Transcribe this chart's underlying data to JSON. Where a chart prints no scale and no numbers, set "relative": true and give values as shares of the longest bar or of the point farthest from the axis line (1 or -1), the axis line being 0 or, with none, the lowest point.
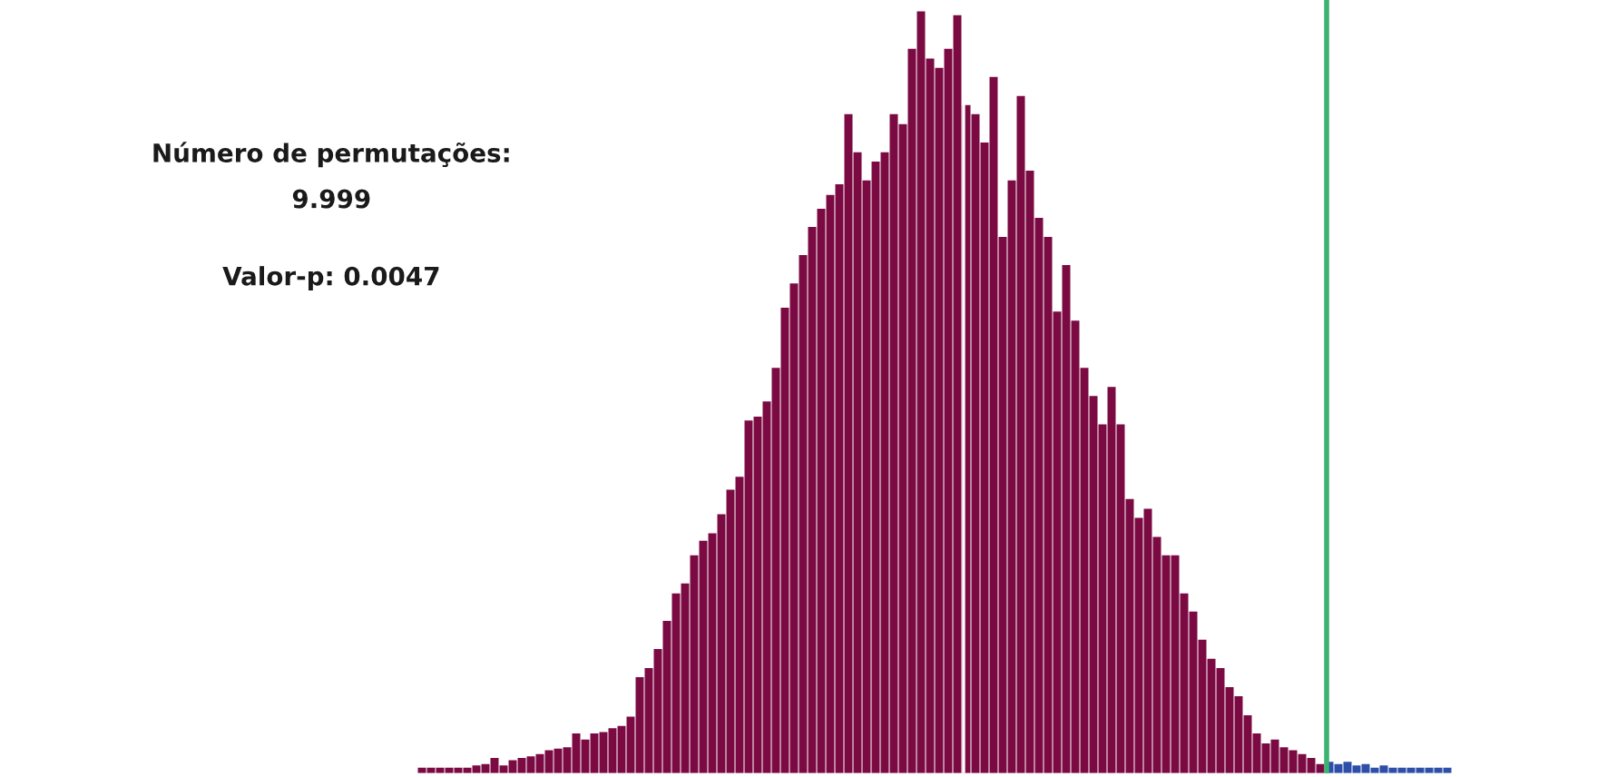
{
  "chart_data": {
    "type": "bar",
    "relative": true,
    "categories": [
      null,
      null,
      null,
      null,
      null,
      null,
      null,
      null,
      null,
      null,
      null,
      null,
      null,
      null,
      null,
      null,
      null,
      null,
      null,
      null,
      null,
      null,
      null,
      null,
      null,
      null,
      null,
      null,
      null,
      null,
      null,
      null,
      null,
      null,
      null,
      null,
      null,
      null,
      null,
      null,
      null,
      null,
      null,
      null,
      null,
      null,
      null,
      null,
      null,
      null,
      null,
      null,
      null,
      null,
      null,
      null,
      null,
      null,
      null,
      null,
      null,
      null,
      null,
      null,
      null,
      null,
      null,
      null,
      null,
      null,
      null,
      null,
      null,
      null,
      null,
      null,
      null,
      null,
      null,
      null,
      null,
      null,
      null,
      null,
      null,
      null,
      null,
      null,
      null,
      null,
      null,
      null,
      null,
      null,
      null,
      null,
      null,
      null,
      null,
      null,
      null,
      null,
      null,
      null,
      null,
      null,
      null,
      null,
      null,
      null,
      null,
      null,
      null,
      null
    ],
    "values": [
      0.007,
      0.007,
      0.007,
      0.007,
      0.007,
      0.007,
      0.01,
      0.012,
      0.02,
      0.01,
      0.017,
      0.02,
      0.022,
      0.025,
      0.03,
      0.032,
      0.034,
      0.052,
      0.044,
      0.052,
      0.054,
      0.059,
      0.062,
      0.074,
      0.126,
      0.138,
      0.163,
      0.2,
      0.236,
      0.249,
      0.286,
      0.305,
      0.315,
      0.34,
      0.372,
      0.389,
      0.463,
      0.468,
      0.488,
      0.532,
      0.611,
      0.643,
      0.68,
      0.717,
      0.741,
      0.759,
      0.773,
      0.865,
      0.815,
      0.778,
      0.803,
      0.815,
      0.865,
      0.852,
      0.951,
      1,
      0.938,
      0.926,
      0.951,
      0.995,
      0.877,
      0.865,
      0.828,
      0.914,
      0.704,
      0.778,
      0.889,
      0.791,
      0.729,
      0.704,
      0.606,
      0.667,
      0.594,
      0.532,
      0.495,
      0.458,
      0.507,
      0.458,
      0.36,
      0.335,
      0.347,
      0.31,
      0.286,
      0.286,
      0.236,
      0.212,
      0.175,
      0.15,
      0.138,
      0.113,
      0.101,
      0.076,
      0.052,
      0.039,
      0.044,
      0.034,
      0.03,
      0.025,
      0.02,
      0.012,
      0.015,
      0.012,
      0.015,
      0.01,
      0.012,
      0.007,
      0.01,
      0.007,
      0.007,
      0.007,
      0.007,
      0.007,
      0.007,
      0.007
    ],
    "colors": [
      "#7b0a42",
      "#7b0a42",
      "#7b0a42",
      "#7b0a42",
      "#7b0a42",
      "#7b0a42",
      "#7b0a42",
      "#7b0a42",
      "#7b0a42",
      "#7b0a42",
      "#7b0a42",
      "#7b0a42",
      "#7b0a42",
      "#7b0a42",
      "#7b0a42",
      "#7b0a42",
      "#7b0a42",
      "#7b0a42",
      "#7b0a42",
      "#7b0a42",
      "#7b0a42",
      "#7b0a42",
      "#7b0a42",
      "#7b0a42",
      "#7b0a42",
      "#7b0a42",
      "#7b0a42",
      "#7b0a42",
      "#7b0a42",
      "#7b0a42",
      "#7b0a42",
      "#7b0a42",
      "#7b0a42",
      "#7b0a42",
      "#7b0a42",
      "#7b0a42",
      "#7b0a42",
      "#7b0a42",
      "#7b0a42",
      "#7b0a42",
      "#7b0a42",
      "#7b0a42",
      "#7b0a42",
      "#7b0a42",
      "#7b0a42",
      "#7b0a42",
      "#7b0a42",
      "#7b0a42",
      "#7b0a42",
      "#7b0a42",
      "#7b0a42",
      "#7b0a42",
      "#7b0a42",
      "#7b0a42",
      "#7b0a42",
      "#7b0a42",
      "#7b0a42",
      "#7b0a42",
      "#7b0a42",
      "#7b0a42",
      "#7b0a42",
      "#7b0a42",
      "#7b0a42",
      "#7b0a42",
      "#7b0a42",
      "#7b0a42",
      "#7b0a42",
      "#7b0a42",
      "#7b0a42",
      "#7b0a42",
      "#7b0a42",
      "#7b0a42",
      "#7b0a42",
      "#7b0a42",
      "#7b0a42",
      "#7b0a42",
      "#7b0a42",
      "#7b0a42",
      "#7b0a42",
      "#7b0a42",
      "#7b0a42",
      "#7b0a42",
      "#7b0a42",
      "#7b0a42",
      "#7b0a42",
      "#7b0a42",
      "#7b0a42",
      "#7b0a42",
      "#7b0a42",
      "#7b0a42",
      "#7b0a42",
      "#7b0a42",
      "#7b0a42",
      "#7b0a42",
      "#7b0a42",
      "#7b0a42",
      "#7b0a42",
      "#7b0a42",
      "#7b0a42",
      "#7b0a42",
      "#2e4fa8",
      "#2e4fa8",
      "#2e4fa8",
      "#2e4fa8",
      "#2e4fa8",
      "#2e4fa8",
      "#2e4fa8",
      "#2e4fa8",
      "#2e4fa8",
      "#2e4fa8",
      "#2e4fa8",
      "#2e4fa8",
      "#2e4fa8",
      "#2e4fa8"
    ],
    "annotations": [
      "Número de permutações:",
      "9.999",
      "Valor-p: 0.0047"
    ],
    "grid": false,
    "legend": false
  }
}
